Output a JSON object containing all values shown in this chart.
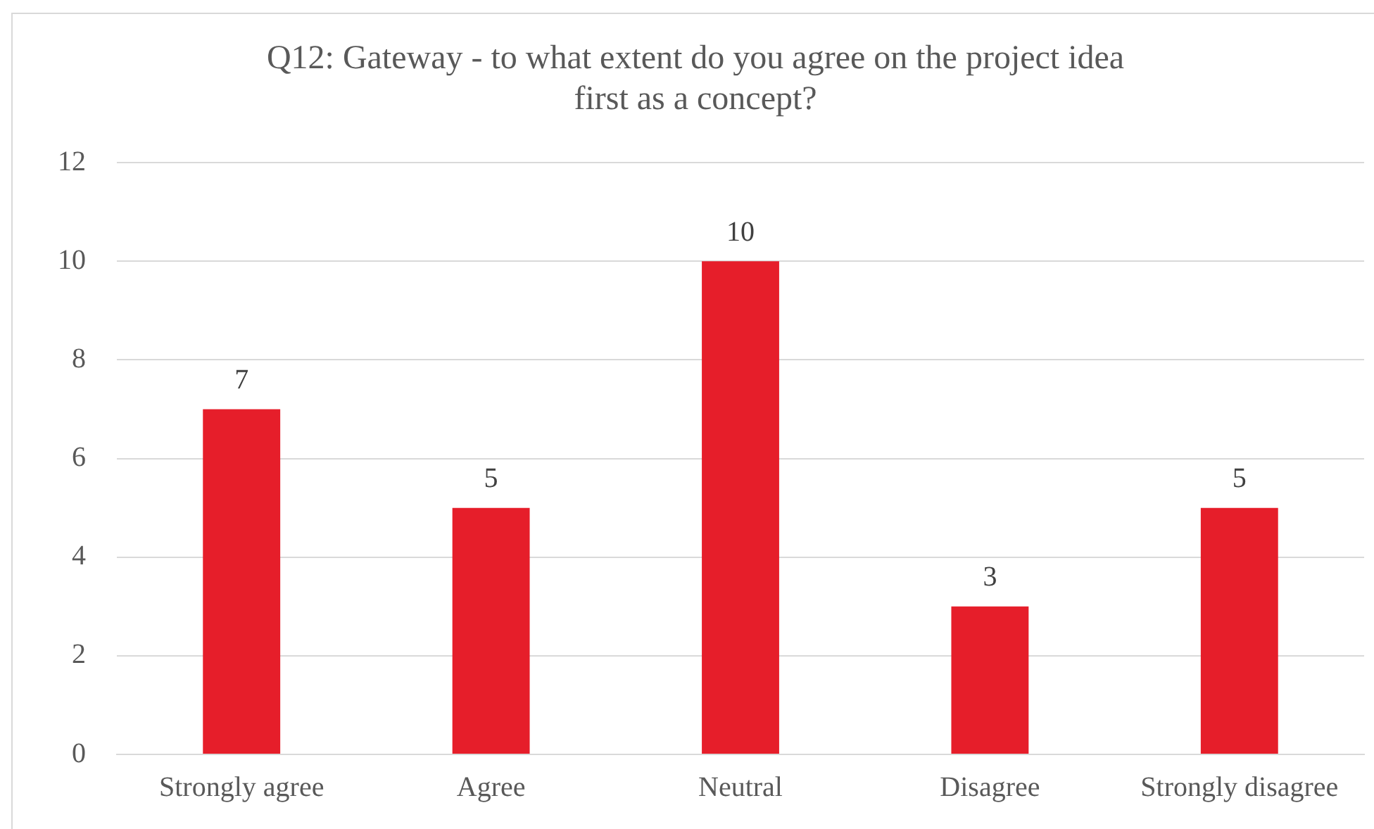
{
  "chart_data": {
    "type": "bar",
    "title": [
      "Q12: Gateway - to what extent do you agree on the project idea",
      "first as a concept?"
    ],
    "categories": [
      "Strongly agree",
      "Agree",
      "Neutral",
      "Disagree",
      "Strongly disagree"
    ],
    "values": [
      7,
      5,
      10,
      3,
      5
    ],
    "color": "#e61e2a",
    "ylim": [
      0,
      12
    ],
    "yticks": [
      0,
      2,
      4,
      6,
      8,
      10,
      12
    ],
    "grid": "y",
    "data_labels": true,
    "legend": false
  }
}
